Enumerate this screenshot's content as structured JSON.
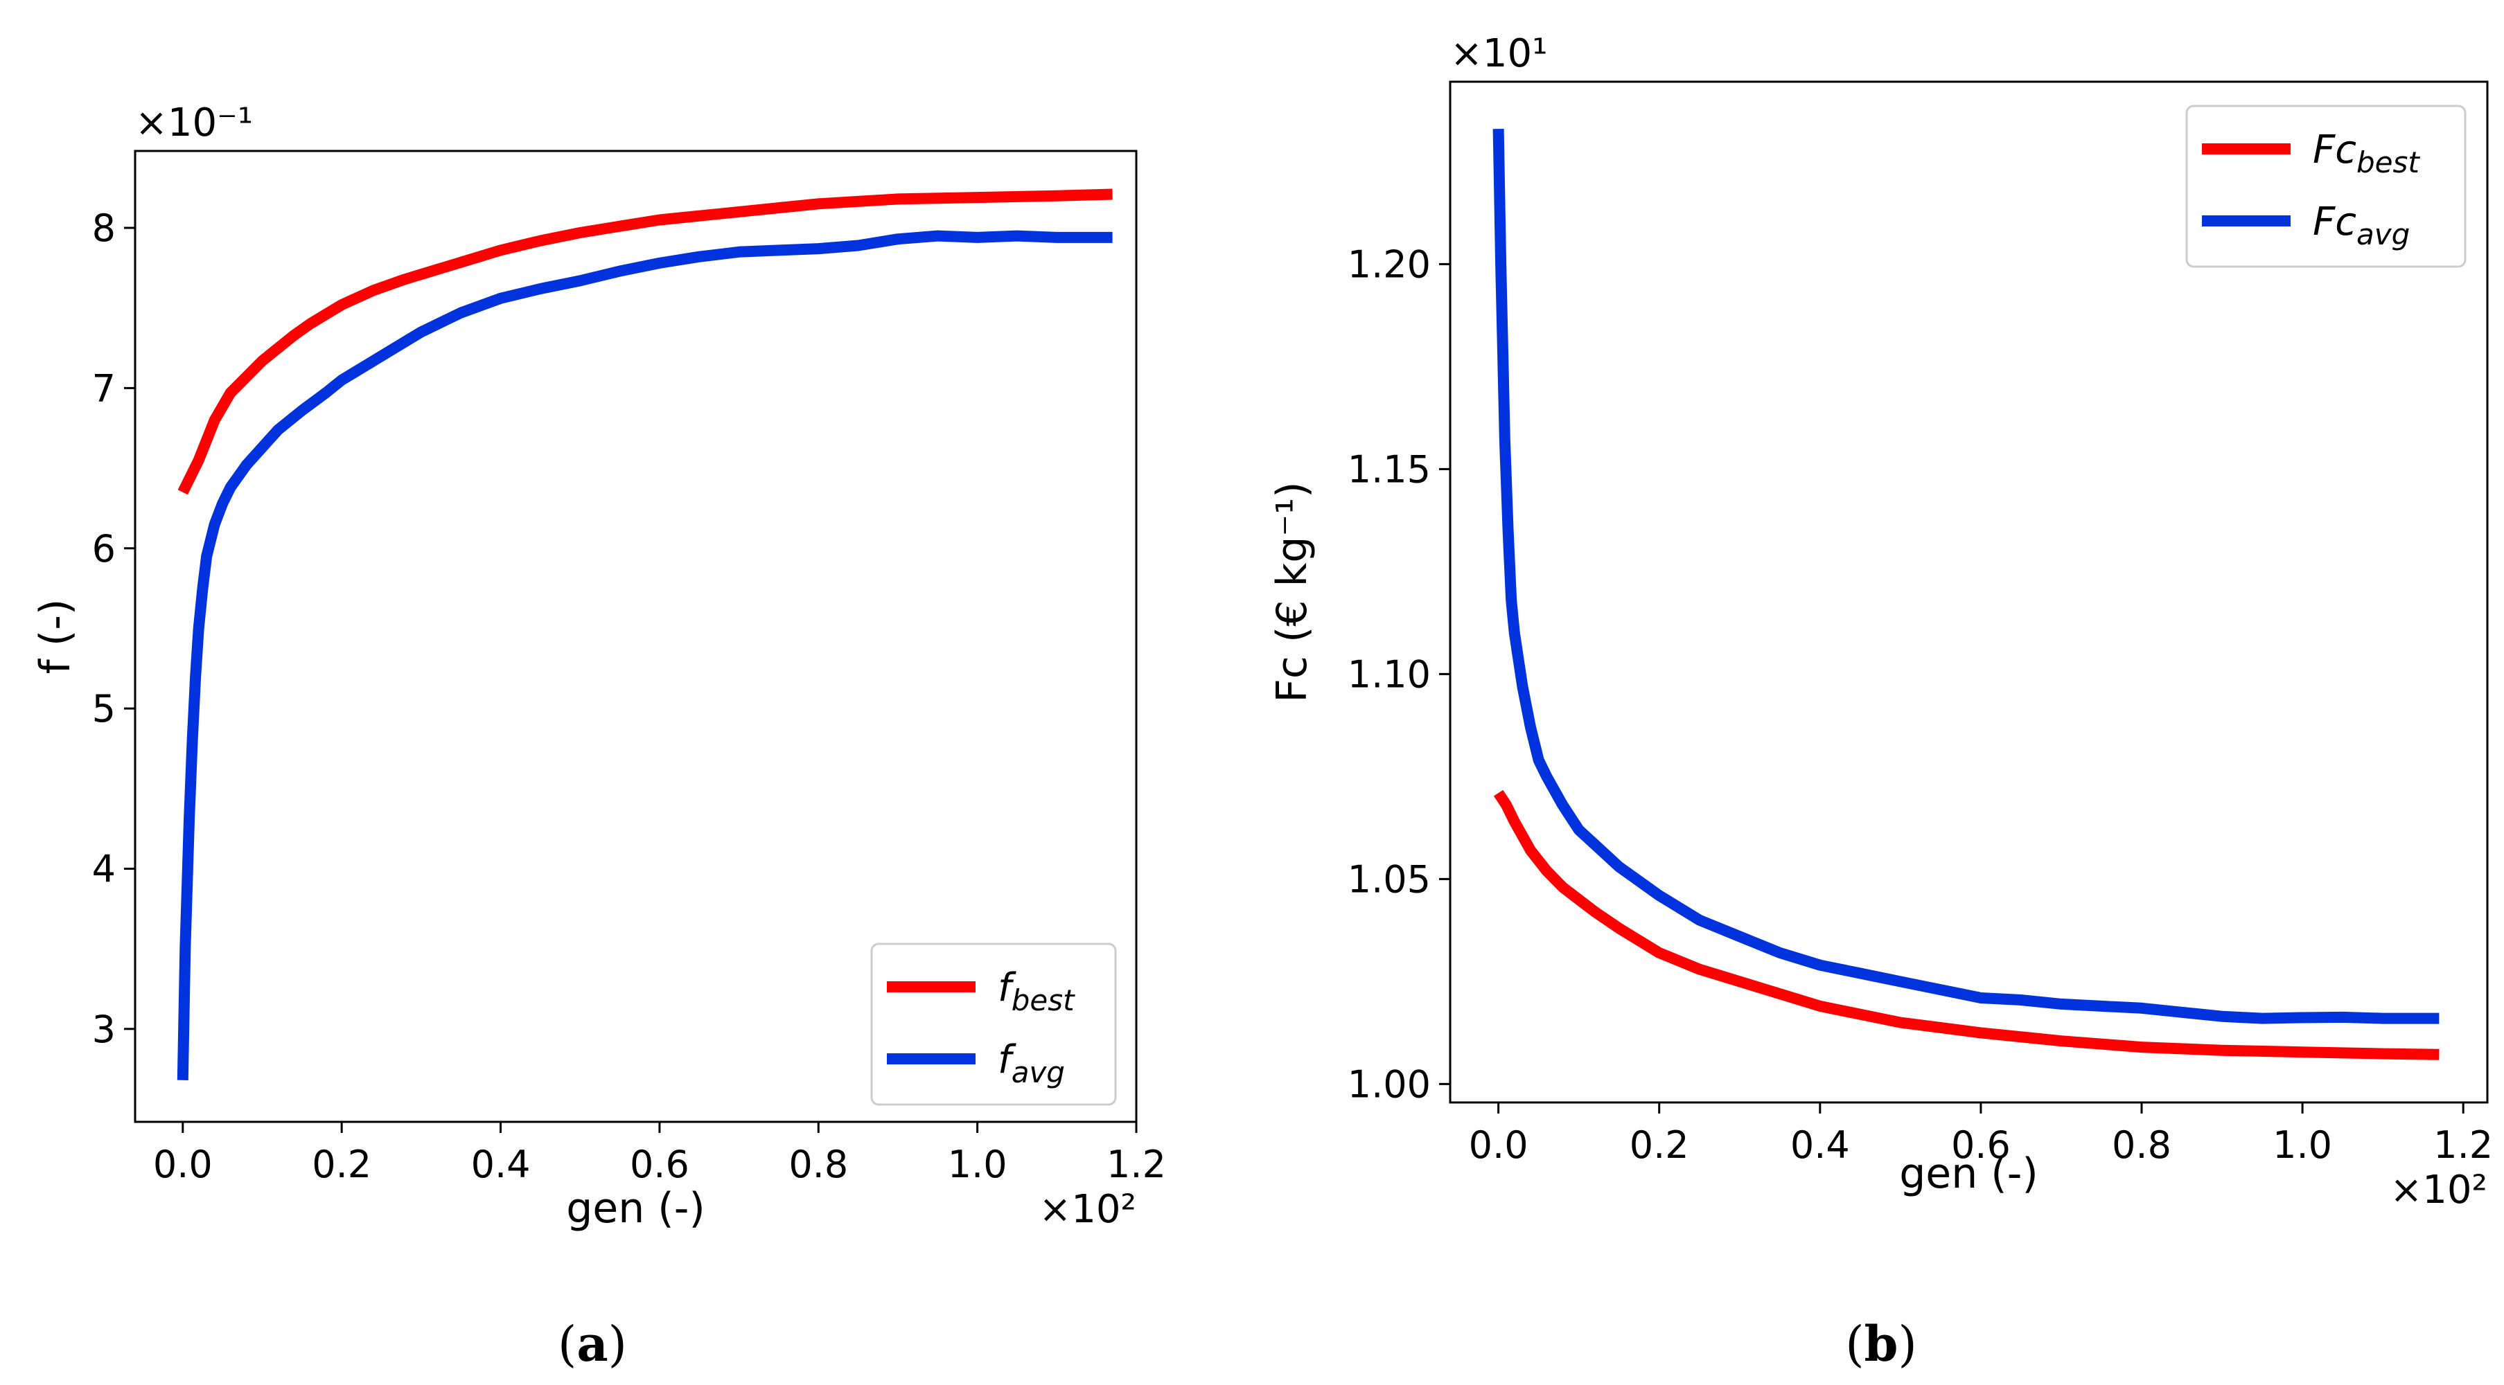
{
  "chart_data": [
    {
      "type": "line",
      "panel_label": "a",
      "xlabel": "gen (-)",
      "ylabel": "f (-)",
      "x_offset_text": "×10²",
      "y_offset_text": "×10⁻¹",
      "x_ticks": [
        "0.0",
        "0.2",
        "0.4",
        "0.6",
        "0.8",
        "1.0",
        "1.2"
      ],
      "y_ticks": [
        "3",
        "4",
        "5",
        "6",
        "7",
        "8"
      ],
      "xlim": [
        -0.06,
        1.2
      ],
      "ylim": [
        2.42,
        8.48
      ],
      "x_tick_values": [
        0.0,
        0.2,
        0.4,
        0.6,
        0.8,
        1.0,
        1.2
      ],
      "y_tick_values": [
        3,
        4,
        5,
        6,
        7,
        8
      ],
      "legend_position": "lower-right",
      "series": [
        {
          "name": "f_best",
          "legend_base": "f",
          "legend_sub": "best",
          "color": "#ff0000",
          "x": [
            0.0,
            0.02,
            0.04,
            0.06,
            0.08,
            0.1,
            0.12,
            0.14,
            0.16,
            0.18,
            0.2,
            0.24,
            0.28,
            0.32,
            0.36,
            0.4,
            0.45,
            0.5,
            0.55,
            0.6,
            0.7,
            0.8,
            0.9,
            1.0,
            1.1,
            1.17
          ],
          "y": [
            6.35,
            6.55,
            6.8,
            6.97,
            7.07,
            7.17,
            7.25,
            7.33,
            7.4,
            7.46,
            7.52,
            7.61,
            7.68,
            7.74,
            7.8,
            7.86,
            7.92,
            7.97,
            8.01,
            8.05,
            8.1,
            8.15,
            8.18,
            8.19,
            8.2,
            8.21
          ]
        },
        {
          "name": "f_avg",
          "legend_base": "f",
          "legend_sub": "avg",
          "color": "#0033dd",
          "x": [
            0.0,
            0.003,
            0.008,
            0.012,
            0.016,
            0.02,
            0.025,
            0.03,
            0.04,
            0.05,
            0.06,
            0.08,
            0.1,
            0.12,
            0.15,
            0.18,
            0.2,
            0.25,
            0.3,
            0.35,
            0.4,
            0.45,
            0.5,
            0.55,
            0.6,
            0.65,
            0.7,
            0.75,
            0.8,
            0.85,
            0.9,
            0.95,
            1.0,
            1.05,
            1.1,
            1.17
          ],
          "y": [
            2.68,
            3.5,
            4.3,
            4.8,
            5.2,
            5.5,
            5.75,
            5.95,
            6.15,
            6.28,
            6.38,
            6.52,
            6.63,
            6.74,
            6.86,
            6.97,
            7.05,
            7.2,
            7.35,
            7.47,
            7.56,
            7.62,
            7.67,
            7.73,
            7.78,
            7.82,
            7.85,
            7.86,
            7.87,
            7.89,
            7.93,
            7.95,
            7.94,
            7.95,
            7.94,
            7.94
          ]
        }
      ],
      "caption": "(a)"
    },
    {
      "type": "line",
      "panel_label": "b",
      "xlabel": "gen (-)",
      "ylabel": "Fc (€ kg⁻¹)",
      "x_offset_text": "×10²",
      "y_offset_text": "×10¹",
      "x_ticks": [
        "0.0",
        "0.2",
        "0.4",
        "0.6",
        "0.8",
        "1.0",
        "1.2"
      ],
      "y_ticks": [
        "1.00",
        "1.05",
        "1.10",
        "1.15",
        "1.20"
      ],
      "xlim": [
        -0.06,
        1.23
      ],
      "ylim": [
        0.9955,
        1.2445
      ],
      "x_tick_values": [
        0.0,
        0.2,
        0.4,
        0.6,
        0.8,
        1.0,
        1.2
      ],
      "y_tick_values": [
        1.0,
        1.05,
        1.1,
        1.15,
        1.2
      ],
      "legend_position": "upper-right",
      "series": [
        {
          "name": "Fc_best",
          "legend_base": "Fc",
          "legend_sub": "best",
          "color": "#ff0000",
          "x": [
            0.0,
            0.01,
            0.02,
            0.04,
            0.06,
            0.08,
            0.1,
            0.12,
            0.15,
            0.2,
            0.25,
            0.3,
            0.35,
            0.4,
            0.45,
            0.5,
            0.6,
            0.7,
            0.8,
            0.9,
            1.0,
            1.1,
            1.17
          ],
          "y": [
            1.071,
            1.068,
            1.064,
            1.057,
            1.052,
            1.048,
            1.045,
            1.042,
            1.038,
            1.032,
            1.028,
            1.025,
            1.022,
            1.019,
            1.017,
            1.015,
            1.0125,
            1.0105,
            1.009,
            1.0082,
            1.0078,
            1.0074,
            1.0072
          ]
        },
        {
          "name": "Fc_avg",
          "legend_base": "Fc",
          "legend_sub": "avg",
          "color": "#0033dd",
          "x": [
            0.0,
            0.003,
            0.008,
            0.012,
            0.016,
            0.02,
            0.03,
            0.04,
            0.05,
            0.06,
            0.08,
            0.1,
            0.15,
            0.2,
            0.25,
            0.3,
            0.35,
            0.4,
            0.45,
            0.5,
            0.55,
            0.6,
            0.65,
            0.7,
            0.75,
            0.8,
            0.85,
            0.9,
            0.95,
            1.0,
            1.05,
            1.1,
            1.17
          ],
          "y": [
            1.233,
            1.2,
            1.157,
            1.135,
            1.118,
            1.11,
            1.097,
            1.087,
            1.079,
            1.075,
            1.068,
            1.062,
            1.053,
            1.046,
            1.04,
            1.036,
            1.032,
            1.029,
            1.027,
            1.025,
            1.023,
            1.021,
            1.0205,
            1.0195,
            1.019,
            1.0185,
            1.0175,
            1.0165,
            1.016,
            1.0162,
            1.0163,
            1.016,
            1.016
          ]
        }
      ],
      "caption": "(b)"
    }
  ]
}
